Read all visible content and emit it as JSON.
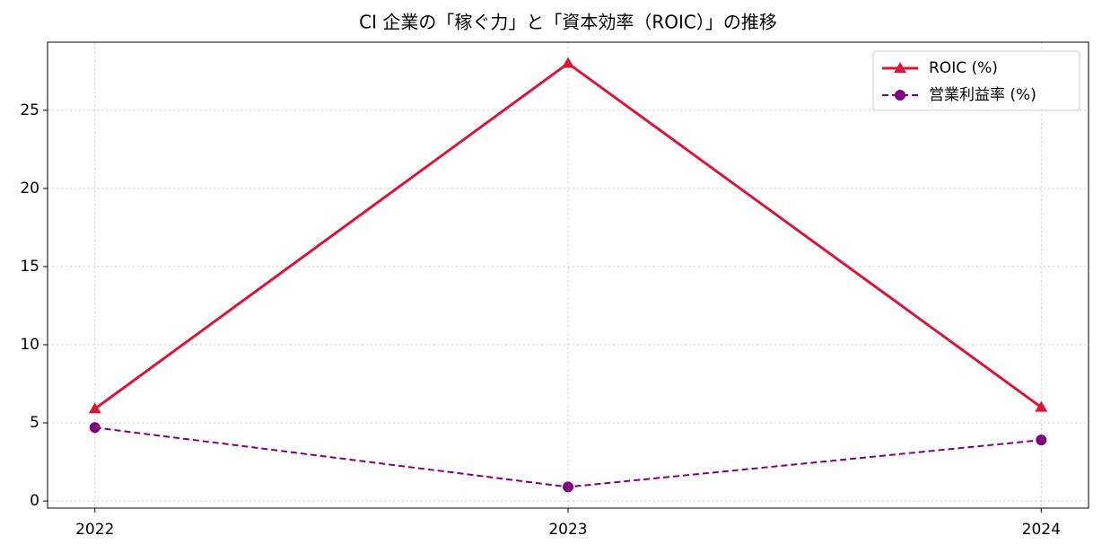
{
  "chart_data": {
    "type": "line",
    "title": "CI 企業の「稼ぐ力」と「資本効率（ROIC）」の推移",
    "x": [
      2022,
      2023,
      2024
    ],
    "series": [
      {
        "name": "ROIC (%)",
        "color": "#dc143c",
        "values": [
          5.9,
          28.0,
          6.0
        ],
        "marker": "triangle",
        "dash": "solid"
      },
      {
        "name": "営業利益率 (%)",
        "color": "#800080",
        "values": [
          4.7,
          0.9,
          3.9
        ],
        "marker": "circle",
        "dash": "dashed"
      }
    ],
    "xlim": [
      2021.9,
      2024.1
    ],
    "xticks": [
      2022,
      2023,
      2024
    ],
    "ylim": [
      -0.455,
      29.355
    ],
    "yticks": [
      0,
      5,
      10,
      15,
      20,
      25
    ],
    "grid": true,
    "legend": "upper-right"
  }
}
